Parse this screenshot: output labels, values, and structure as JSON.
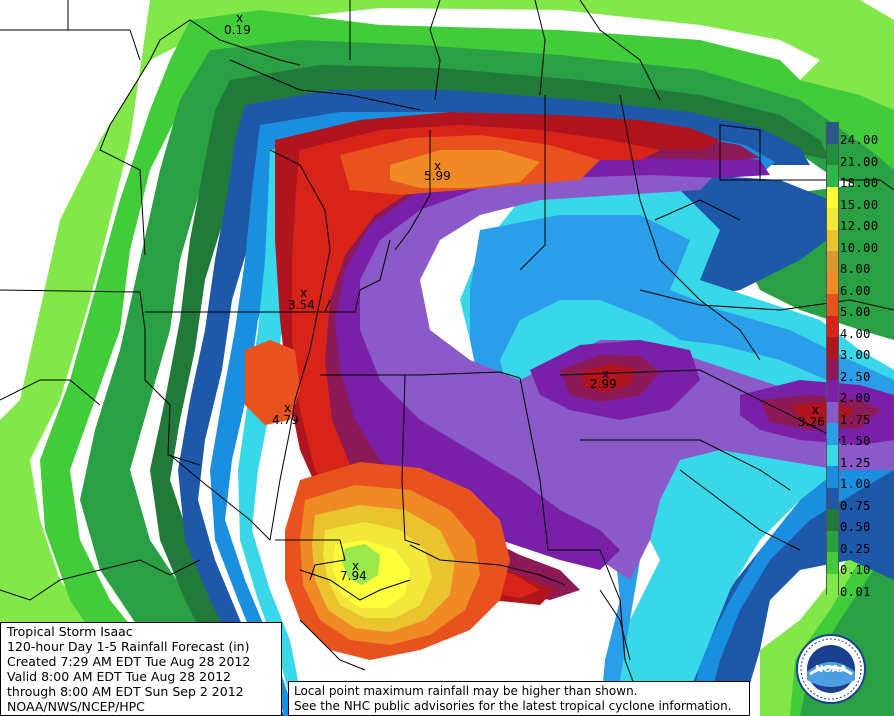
{
  "info": {
    "line1": "Tropical Storm Isaac",
    "line2": "120-hour Day 1-5 Rainfall Forecast (in)",
    "line3": "Created 7:29 AM EDT Tue Aug 28 2012",
    "line4": "Valid 8:00 AM EDT Tue Aug 28 2012",
    "line5": "through 8:00 AM EDT Sun Sep 2 2012",
    "line6": "NOAA/NWS/NCEP/HPC"
  },
  "note": {
    "line1": "Local point maximum rainfall may be higher than shown.",
    "line2": "See the NHC public advisories for the latest tropical cyclone information."
  },
  "legend": [
    {
      "label": "24.00",
      "color": "#2a5a8a"
    },
    {
      "label": "21.00",
      "color": "#1f8f3c"
    },
    {
      "label": "18.00",
      "color": "#2db84a"
    },
    {
      "label": "15.00",
      "color": "#ffff3a"
    },
    {
      "label": "12.00",
      "color": "#f2e83a"
    },
    {
      "label": "10.00",
      "color": "#e9c42f"
    },
    {
      "label": "8.00",
      "color": "#d99a2e"
    },
    {
      "label": "6.00",
      "color": "#f08a24"
    },
    {
      "label": "5.00",
      "color": "#e8521f"
    },
    {
      "label": "4.00",
      "color": "#d82418"
    },
    {
      "label": "3.00",
      "color": "#b0141e"
    },
    {
      "label": "2.50",
      "color": "#8c1a56"
    },
    {
      "label": "2.00",
      "color": "#7a1fa8"
    },
    {
      "label": "1.75",
      "color": "#8a5ac8"
    },
    {
      "label": "1.50",
      "color": "#2a9ee8"
    },
    {
      "label": "1.25",
      "color": "#38d8e8"
    },
    {
      "label": "1.00",
      "color": "#1a8fe0"
    },
    {
      "label": "0.75",
      "color": "#1e58a8"
    },
    {
      "label": "0.50",
      "color": "#227a3a"
    },
    {
      "label": "0.25",
      "color": "#2aa045"
    },
    {
      "label": "0.10",
      "color": "#42cc3a"
    },
    {
      "label": "0.01",
      "color": "#82e84a"
    }
  ],
  "points": [
    {
      "label": "0.19"
    },
    {
      "label": "5.99"
    },
    {
      "label": "3.54"
    },
    {
      "label": "4.79"
    },
    {
      "label": "2.99"
    },
    {
      "label": "3.26"
    },
    {
      "label": "7.94"
    }
  ],
  "logo": {
    "text": "NOAA",
    "icon": "noaa-logo-icon"
  }
}
